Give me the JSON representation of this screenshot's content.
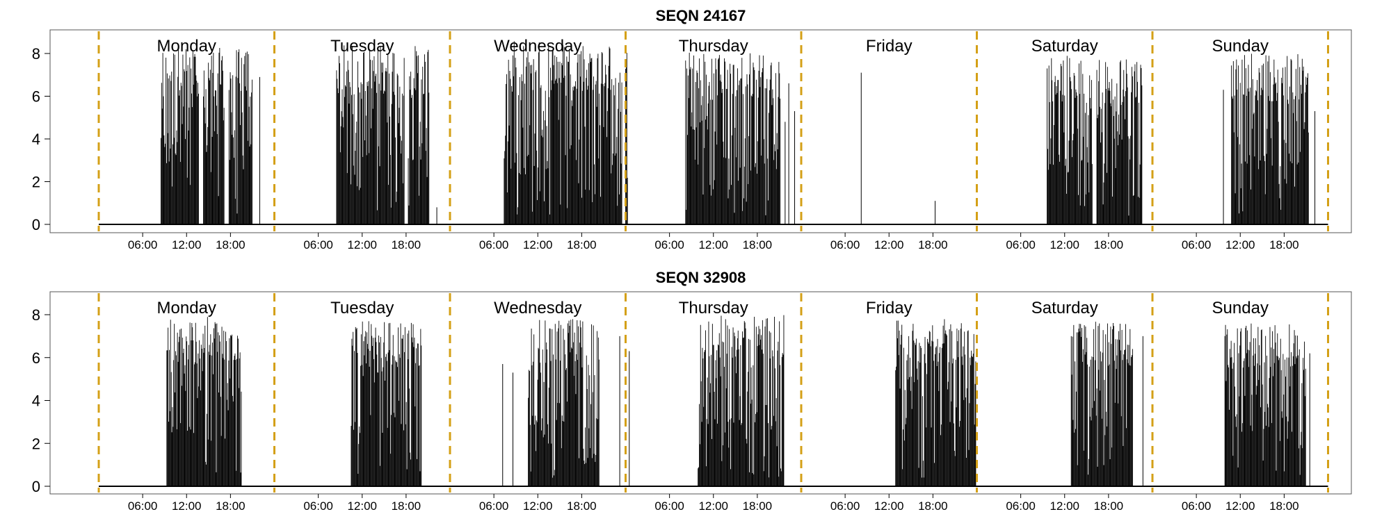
{
  "chart_data": [
    {
      "type": "bar",
      "title": "SEQN 24167",
      "days": [
        "Monday",
        "Tuesday",
        "Wednesday",
        "Thursday",
        "Friday",
        "Saturday",
        "Sunday"
      ],
      "x_tick_labels": [
        "06:00",
        "12:00",
        "18:00"
      ],
      "y_ticks": [
        0,
        2,
        4,
        6,
        8
      ],
      "ylim": [
        -0.4,
        9.1
      ],
      "day_separator_color": "#D4A017",
      "bar_color": "#000000",
      "activity": [
        {
          "day": "Monday",
          "active_hours": [
            [
              8.5,
              13.7
            ],
            [
              14.3,
              17.2
            ],
            [
              17.8,
              21.0
            ]
          ],
          "peak": 8.3,
          "spikes": [
            [
              22.0,
              6.9
            ]
          ]
        },
        {
          "day": "Tuesday",
          "active_hours": [
            [
              8.5,
              17.8
            ],
            [
              18.3,
              21.2
            ]
          ],
          "peak": 8.4,
          "spikes": [
            [
              22.2,
              0.8
            ]
          ]
        },
        {
          "day": "Wednesday",
          "active_hours": [
            [
              7.4,
              23.5
            ]
          ],
          "peak": 8.6,
          "spikes": []
        },
        {
          "day": "Thursday",
          "active_hours": [
            [
              0.0,
              0.3
            ],
            [
              8.2,
              21.2
            ]
          ],
          "peak": 8.1,
          "spikes": [
            [
              21.8,
              4.8
            ],
            [
              22.3,
              6.6
            ],
            [
              23.1,
              5.3
            ]
          ]
        },
        {
          "day": "Friday",
          "active_hours": [],
          "peak": 0,
          "spikes": [
            [
              8.2,
              7.1
            ],
            [
              18.3,
              1.1
            ]
          ]
        },
        {
          "day": "Saturday",
          "active_hours": [
            [
              9.6,
              15.8
            ],
            [
              16.4,
              22.6
            ]
          ],
          "peak": 7.9,
          "spikes": []
        },
        {
          "day": "Sunday",
          "active_hours": [
            [
              10.8,
              21.4
            ]
          ],
          "peak": 8.0,
          "spikes": [
            [
              9.7,
              6.3
            ],
            [
              22.2,
              5.3
            ]
          ]
        }
      ]
    },
    {
      "type": "bar",
      "title": "SEQN 32908",
      "days": [
        "Monday",
        "Tuesday",
        "Wednesday",
        "Thursday",
        "Friday",
        "Saturday",
        "Sunday"
      ],
      "x_tick_labels": [
        "06:00",
        "12:00",
        "18:00"
      ],
      "y_ticks": [
        0,
        2,
        4,
        6,
        8
      ],
      "ylim": [
        -0.4,
        9.1
      ],
      "day_separator_color": "#D4A017",
      "bar_color": "#000000",
      "activity": [
        {
          "day": "Monday",
          "active_hours": [
            [
              9.3,
              19.5
            ]
          ],
          "peak": 7.9,
          "spikes": []
        },
        {
          "day": "Tuesday",
          "active_hours": [
            [
              10.5,
              20.1
            ]
          ],
          "peak": 7.7,
          "spikes": []
        },
        {
          "day": "Wednesday",
          "active_hours": [
            [
              10.7,
              20.4
            ]
          ],
          "peak": 7.8,
          "spikes": [
            [
              7.2,
              5.7
            ],
            [
              8.6,
              5.3
            ],
            [
              23.2,
              7.0
            ]
          ]
        },
        {
          "day": "Thursday",
          "active_hours": [
            [
              9.9,
              21.7
            ]
          ],
          "peak": 8.0,
          "spikes": [
            [
              0.5,
              6.3
            ]
          ]
        },
        {
          "day": "Friday",
          "active_hours": [
            [
              12.9,
              23.9
            ]
          ],
          "peak": 7.8,
          "spikes": []
        },
        {
          "day": "Saturday",
          "active_hours": [
            [
              12.9,
              21.3
            ]
          ],
          "peak": 7.7,
          "spikes": [
            [
              22.7,
              7.0
            ]
          ]
        },
        {
          "day": "Sunday",
          "active_hours": [
            [
              9.9,
              21.0
            ]
          ],
          "peak": 7.6,
          "spikes": [
            [
              21.5,
              6.2
            ]
          ]
        }
      ]
    }
  ]
}
